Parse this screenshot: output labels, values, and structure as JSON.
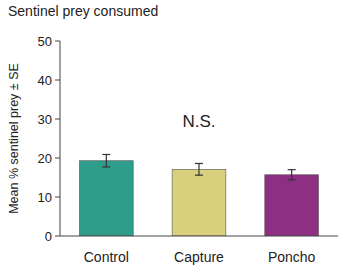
{
  "chart_data": {
    "type": "bar",
    "title": "Sentinel prey consumed",
    "y_label": "Mean % sentinel prey ± SE",
    "categories": [
      "Control",
      "Capture",
      "Poncho"
    ],
    "values": [
      19.3,
      17.1,
      15.7
    ],
    "errors": [
      1.6,
      1.5,
      1.3
    ],
    "colors": [
      "#2e9e8b",
      "#d9d07e",
      "#8e2f83"
    ],
    "annotation": "N.S.",
    "ylim": [
      0,
      50
    ],
    "yticks": [
      0,
      10,
      20,
      30,
      40,
      50
    ],
    "grid": false
  }
}
